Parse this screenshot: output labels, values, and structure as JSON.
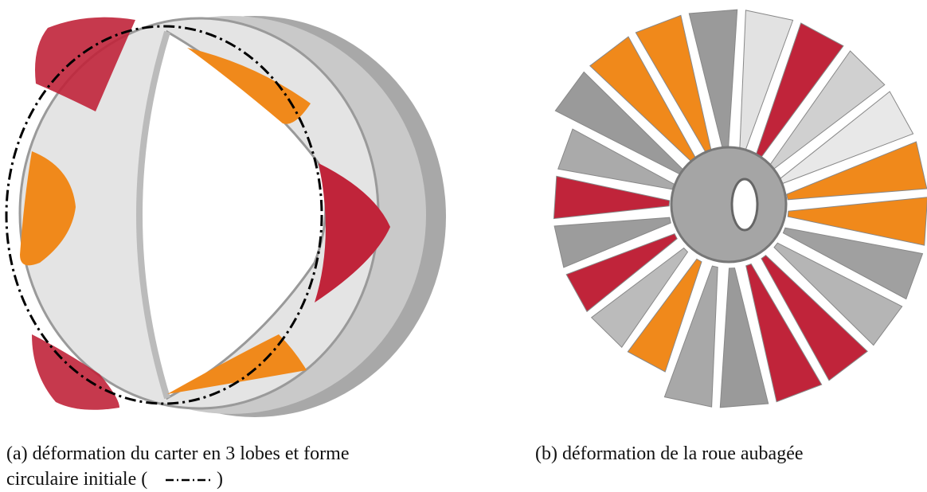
{
  "figure": {
    "subfigures": [
      {
        "label": "(a)",
        "caption_lines": [
          "déformation du carter en 3 lobes et forme",
          "circulaire initiale ("
        ],
        "caption_end": ")"
      },
      {
        "label": "(b)",
        "caption_lines": [
          "déformation de la roue aubagée"
        ]
      }
    ]
  }
}
